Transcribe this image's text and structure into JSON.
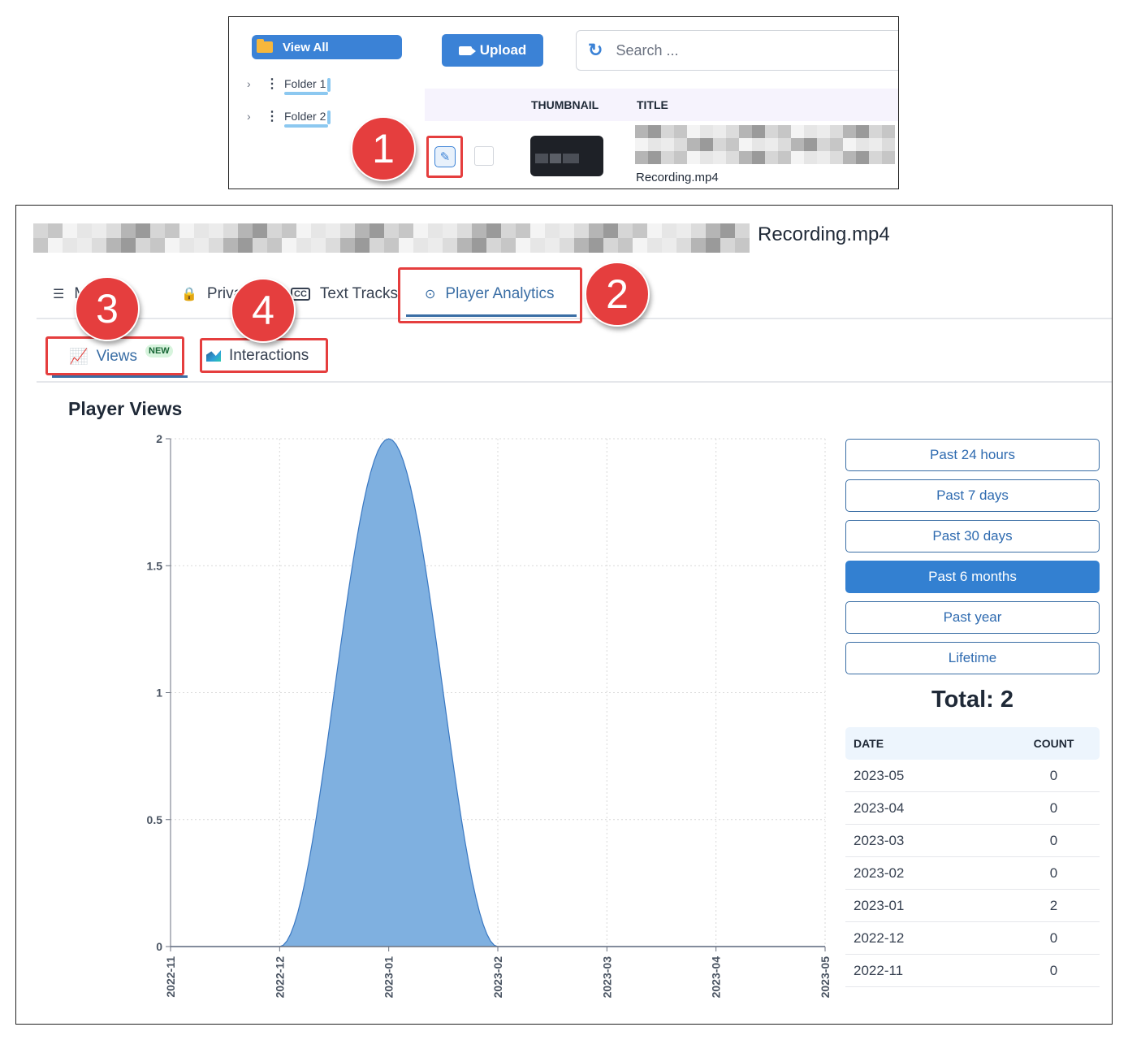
{
  "top": {
    "view_all_label": "View All",
    "folders": [
      {
        "label": "Folder 1"
      },
      {
        "label": "Folder 2"
      }
    ],
    "upload_label": "Upload",
    "search_placeholder": "Search ...",
    "table_headers": {
      "thumbnail": "THUMBNAIL",
      "title": "TITLE"
    },
    "row_file_name": "Recording.mp4"
  },
  "media": {
    "file_title": "Recording.mp4",
    "tabs": [
      {
        "label": "Media",
        "icon": "details-icon"
      },
      {
        "label": "Privacy",
        "icon": "lock-icon"
      },
      {
        "label": "Text Tracks",
        "icon": "cc-icon"
      },
      {
        "label": "Player Analytics",
        "icon": "play-circle-icon",
        "active": true
      }
    ],
    "subtabs": [
      {
        "label": "Views",
        "badge": "NEW",
        "icon": "line-chart-icon",
        "active": true
      },
      {
        "label": "Interactions",
        "icon": "area-chart-icon"
      }
    ]
  },
  "chart_data": {
    "type": "area",
    "title": "Player Views",
    "x": [
      "2022-11",
      "2022-12",
      "2023-01",
      "2023-02",
      "2023-03",
      "2023-04",
      "2023-05"
    ],
    "values": [
      0,
      0,
      2,
      0,
      0,
      0,
      0
    ],
    "ylim": [
      0,
      2
    ],
    "yticks": [
      "0",
      "0.5",
      "1",
      "1.5",
      "2"
    ],
    "grid": true,
    "color": "#7fb0e0"
  },
  "range_buttons": [
    {
      "label": "Past 24 hours"
    },
    {
      "label": "Past 7 days"
    },
    {
      "label": "Past 30 days"
    },
    {
      "label": "Past 6 months",
      "selected": true
    },
    {
      "label": "Past year"
    },
    {
      "label": "Lifetime"
    }
  ],
  "total_label": "Total: 2",
  "table": {
    "headers": {
      "date": "DATE",
      "count": "COUNT"
    },
    "rows": [
      {
        "date": "2023-05",
        "count": "0"
      },
      {
        "date": "2023-04",
        "count": "0"
      },
      {
        "date": "2023-03",
        "count": "0"
      },
      {
        "date": "2023-02",
        "count": "0"
      },
      {
        "date": "2023-01",
        "count": "2"
      },
      {
        "date": "2022-12",
        "count": "0"
      },
      {
        "date": "2022-11",
        "count": "0"
      }
    ]
  },
  "annotations": [
    "1",
    "2",
    "3",
    "4"
  ],
  "colors": {
    "primary": "#3b82d6",
    "highlight": "#e53e3e",
    "accent_text": "#3a6ea5"
  }
}
